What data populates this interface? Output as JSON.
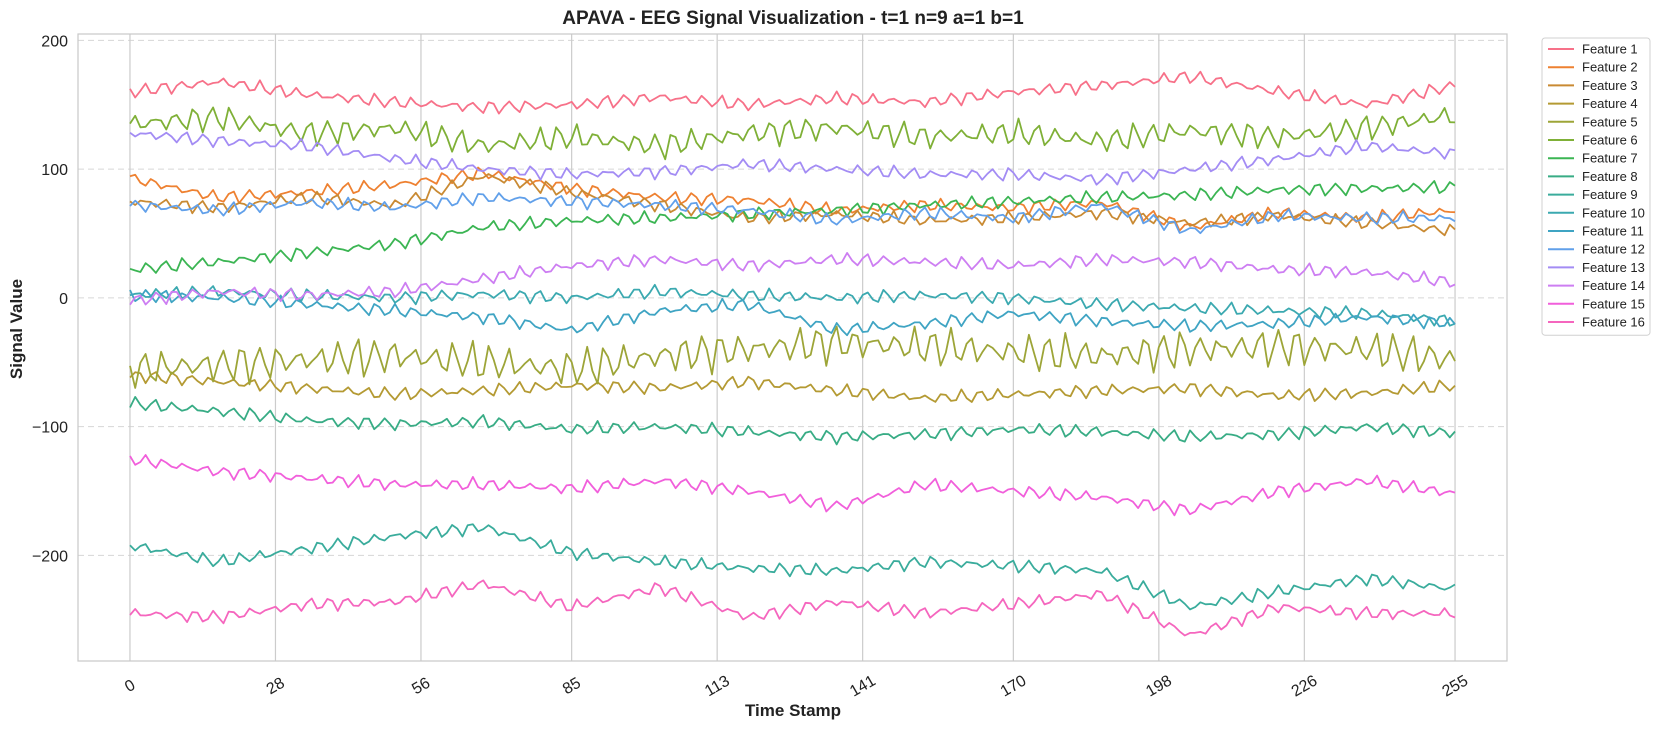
{
  "chart_data": {
    "type": "line",
    "title": "APAVA - EEG Signal Visualization - t=1 n=9 a=1 b=1",
    "xlabel": "Time Stamp",
    "ylabel": "Signal Value",
    "xlim": [
      -10,
      265
    ],
    "ylim": [
      -282,
      205
    ],
    "x_ticks": [
      0,
      28,
      56,
      85,
      113,
      141,
      170,
      198,
      226,
      255
    ],
    "y_ticks": [
      200,
      100,
      0,
      -100,
      -200
    ],
    "y_tick_labels": [
      "200",
      "100",
      "0",
      "−100",
      "−200"
    ],
    "grid": true,
    "legend_position": "outside-top-right",
    "x": [
      0,
      17,
      34,
      51,
      68,
      85,
      102,
      119,
      136,
      153,
      170,
      187,
      204,
      221,
      238,
      255
    ],
    "series": [
      {
        "name": "Feature 1",
        "color": "#f77189",
        "values": [
          160,
          168,
          158,
          152,
          148,
          150,
          156,
          150,
          155,
          152,
          160,
          165,
          172,
          160,
          150,
          165
        ]
      },
      {
        "name": "Feature 2",
        "color": "#ee8131",
        "values": [
          93,
          78,
          82,
          88,
          97,
          85,
          78,
          76,
          68,
          72,
          70,
          74,
          55,
          66,
          62,
          68
        ]
      },
      {
        "name": "Feature 3",
        "color": "#c98a33",
        "values": [
          75,
          70,
          78,
          72,
          95,
          82,
          72,
          62,
          65,
          60,
          62,
          66,
          58,
          64,
          58,
          52
        ]
      },
      {
        "name": "Feature 4",
        "color": "#b49a33",
        "values": [
          -60,
          -65,
          -70,
          -75,
          -72,
          -68,
          -70,
          -65,
          -72,
          -78,
          -75,
          -72,
          -70,
          -76,
          -74,
          -68
        ]
      },
      {
        "name": "Feature 5",
        "color": "#9da538",
        "values": [
          -55,
          -52,
          -48,
          -45,
          -50,
          -55,
          -45,
          -40,
          -35,
          -38,
          -42,
          -45,
          -40,
          -38,
          -40,
          -48
        ]
      },
      {
        "name": "Feature 6",
        "color": "#7fb037",
        "values": [
          135,
          140,
          128,
          132,
          118,
          125,
          118,
          128,
          132,
          125,
          128,
          122,
          130,
          125,
          132,
          142
        ]
      },
      {
        "name": "Feature 7",
        "color": "#3bb553",
        "values": [
          22,
          28,
          35,
          42,
          55,
          60,
          62,
          65,
          68,
          72,
          75,
          78,
          80,
          84,
          85,
          86
        ]
      },
      {
        "name": "Feature 8",
        "color": "#38ac85",
        "values": [
          -82,
          -88,
          -95,
          -98,
          -96,
          -102,
          -100,
          -104,
          -108,
          -106,
          -102,
          -104,
          -108,
          -106,
          -100,
          -105
        ]
      },
      {
        "name": "Feature 9",
        "color": "#3aac9c",
        "values": [
          -192,
          -205,
          -195,
          -185,
          -178,
          -198,
          -205,
          -210,
          -212,
          -205,
          -208,
          -212,
          -240,
          -228,
          -218,
          -226
        ]
      },
      {
        "name": "Feature 10",
        "color": "#3ba9b0",
        "values": [
          2,
          5,
          2,
          0,
          3,
          0,
          5,
          2,
          0,
          2,
          0,
          -5,
          -8,
          -10,
          -12,
          -18
        ]
      },
      {
        "name": "Feature 11",
        "color": "#3fa4c3",
        "values": [
          2,
          0,
          -5,
          -10,
          -15,
          -25,
          -10,
          -5,
          -25,
          -20,
          -12,
          -18,
          -22,
          -20,
          -15,
          -20
        ]
      },
      {
        "name": "Feature 12",
        "color": "#61a0ea",
        "values": [
          72,
          68,
          74,
          70,
          78,
          75,
          72,
          68,
          60,
          66,
          62,
          72,
          52,
          64,
          62,
          62
        ]
      },
      {
        "name": "Feature 13",
        "color": "#a38cf4",
        "values": [
          128,
          122,
          118,
          108,
          100,
          96,
          98,
          104,
          100,
          96,
          96,
          92,
          100,
          108,
          118,
          112
        ]
      },
      {
        "name": "Feature 14",
        "color": "#cd7ef2",
        "values": [
          -2,
          5,
          2,
          5,
          15,
          25,
          30,
          25,
          30,
          28,
          25,
          30,
          28,
          22,
          20,
          12
        ]
      },
      {
        "name": "Feature 15",
        "color": "#f15fdb",
        "values": [
          -125,
          -135,
          -140,
          -145,
          -145,
          -148,
          -142,
          -150,
          -162,
          -145,
          -150,
          -155,
          -165,
          -150,
          -142,
          -152
        ]
      },
      {
        "name": "Feature 16",
        "color": "#f566be",
        "values": [
          -245,
          -248,
          -238,
          -236,
          -222,
          -240,
          -225,
          -248,
          -236,
          -245,
          -238,
          -230,
          -262,
          -240,
          -245,
          -245
        ]
      }
    ]
  }
}
